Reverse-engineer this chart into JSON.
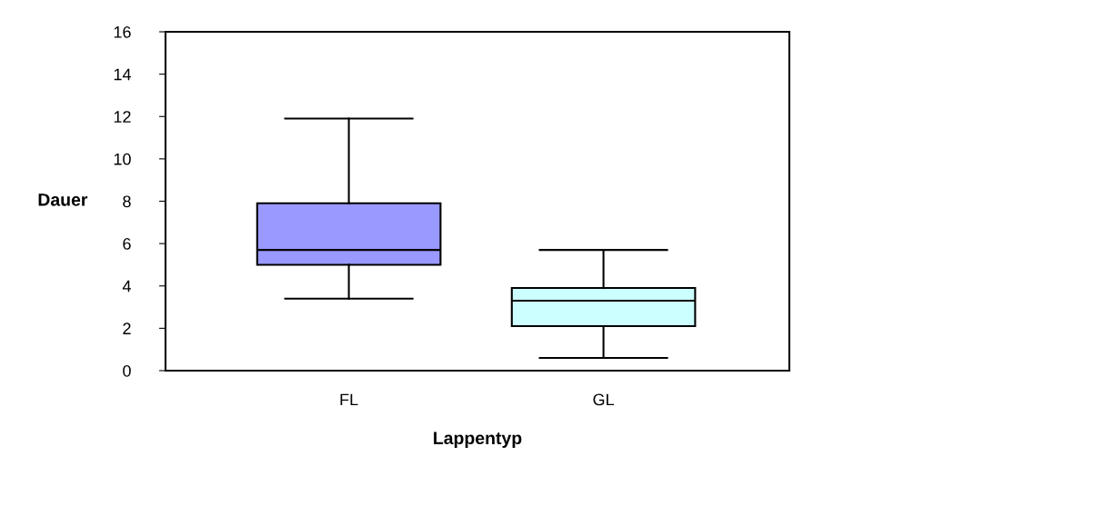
{
  "chart_data": {
    "type": "box",
    "xlabel": "Lappentyp",
    "ylabel": "Dauer",
    "categories": [
      "FL",
      "GL"
    ],
    "boxes": [
      {
        "low": 3.4,
        "q1": 5.0,
        "median": 5.7,
        "q3": 7.9,
        "high": 11.9
      },
      {
        "low": 0.6,
        "q1": 2.1,
        "median": 3.3,
        "q3": 3.9,
        "high": 5.7
      }
    ],
    "colors": [
      "#9999ff",
      "#ccffff"
    ],
    "ylim": [
      0,
      16
    ],
    "yticks": [
      0,
      2,
      4,
      6,
      8,
      10,
      12,
      14,
      16
    ],
    "grid": false,
    "legend": false
  }
}
